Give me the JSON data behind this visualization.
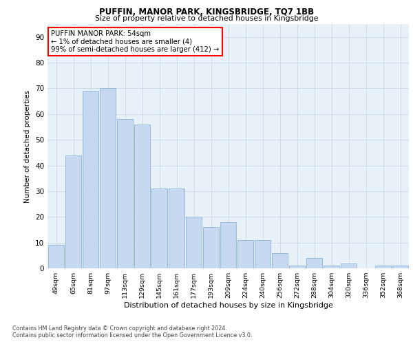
{
  "title1": "PUFFIN, MANOR PARK, KINGSBRIDGE, TQ7 1BB",
  "title2": "Size of property relative to detached houses in Kingsbridge",
  "xlabel": "Distribution of detached houses by size in Kingsbridge",
  "ylabel": "Number of detached properties",
  "categories": [
    "49sqm",
    "65sqm",
    "81sqm",
    "97sqm",
    "113sqm",
    "129sqm",
    "145sqm",
    "161sqm",
    "177sqm",
    "193sqm",
    "209sqm",
    "224sqm",
    "240sqm",
    "256sqm",
    "272sqm",
    "288sqm",
    "304sqm",
    "320sqm",
    "336sqm",
    "352sqm",
    "368sqm"
  ],
  "values": [
    9,
    44,
    69,
    70,
    58,
    56,
    31,
    31,
    20,
    16,
    18,
    11,
    11,
    6,
    1,
    4,
    1,
    2,
    0,
    1,
    1
  ],
  "bar_color": "#c6d9f0",
  "bar_edge_color": "#8ab4d8",
  "annotation_text": "PUFFIN MANOR PARK: 54sqm\n← 1% of detached houses are smaller (4)\n99% of semi-detached houses are larger (412) →",
  "annotation_box_color": "white",
  "annotation_box_edge": "red",
  "ylim": [
    0,
    95
  ],
  "yticks": [
    0,
    10,
    20,
    30,
    40,
    50,
    60,
    70,
    80,
    90
  ],
  "grid_color": "#cddaea",
  "background_color": "#e8f0f8",
  "footer1": "Contains HM Land Registry data © Crown copyright and database right 2024.",
  "footer2": "Contains public sector information licensed under the Open Government Licence v3.0."
}
